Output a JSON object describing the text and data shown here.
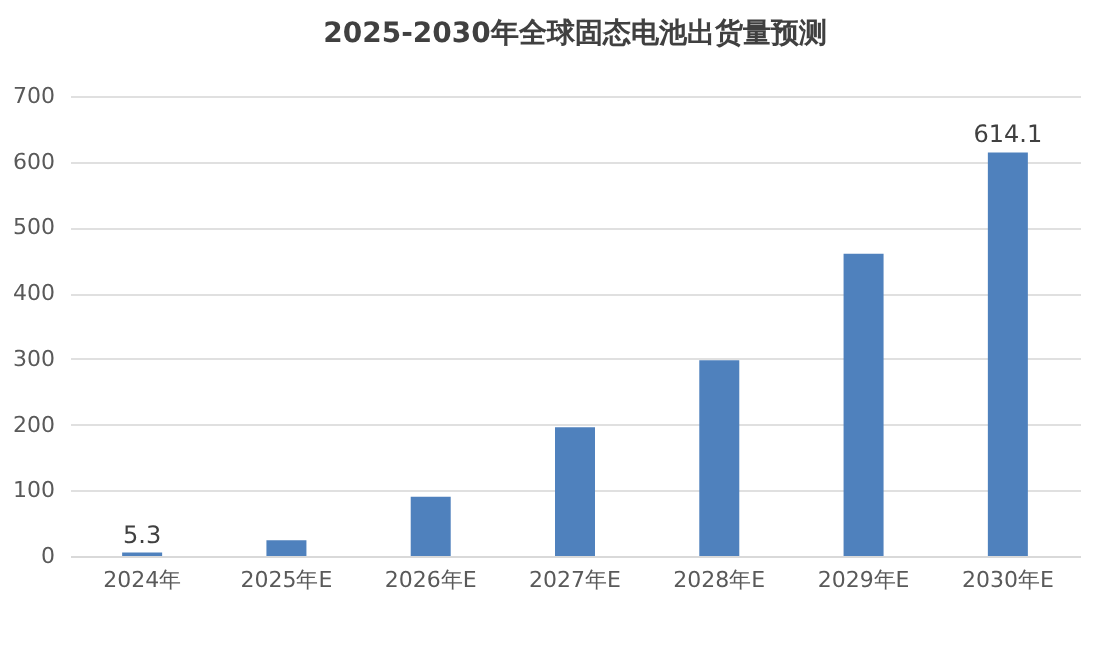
{
  "chart_data": {
    "type": "bar",
    "title": "2025-2030年全球固态电池出货量预测",
    "categories": [
      "2024年",
      "2025年E",
      "2026年E",
      "2027年E",
      "2028年E",
      "2029年E",
      "2030年E"
    ],
    "values": [
      5.3,
      24,
      90,
      196,
      298,
      460,
      614.1
    ],
    "value_labels": [
      "5.3",
      null,
      null,
      null,
      null,
      null,
      "614.1"
    ],
    "color": "#4f81bd",
    "ylim": [
      0,
      700
    ],
    "yticks": [
      0,
      100,
      200,
      300,
      400,
      500,
      600,
      700
    ],
    "grid": "y"
  }
}
